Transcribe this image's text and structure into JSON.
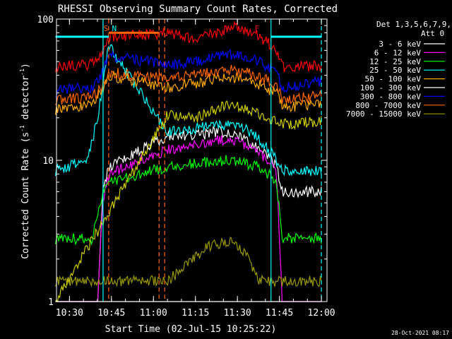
{
  "chart_data": {
    "type": "line",
    "title": "RHESSI Observing Summary Count Rates, Corrected",
    "xlabel": "Start Time (02-Jul-15 10:25:22)",
    "ylabel_main": "Corrected Count Rate (s",
    "ylabel_sup1": "-1",
    "ylabel_mid": " detector",
    "ylabel_sup2": "-1",
    "ylabel_end": ")",
    "y_scale": "log",
    "xlim": [
      "10:25:22",
      "12:02:00"
    ],
    "ylim": [
      1,
      100
    ],
    "x_ticks": [
      "10:30",
      "10:45",
      "11:00",
      "11:15",
      "11:30",
      "11:45",
      "12:00"
    ],
    "y_ticks": [
      "1",
      "10",
      "100"
    ],
    "legend_header_1": "Det 1,3,5,6,7,9,",
    "legend_header_2": "Att 0",
    "legend_position": "right",
    "series": [
      {
        "name": "3 - 6 keV",
        "color": "#ffffff",
        "points": [
          [
            "10:25",
            1.0
          ],
          [
            "10:40",
            1.0
          ],
          [
            "10:42",
            6
          ],
          [
            "10:44",
            9
          ],
          [
            "11:05",
            15
          ],
          [
            "11:15",
            15
          ],
          [
            "11:22",
            16
          ],
          [
            "11:28",
            16
          ],
          [
            "11:33",
            14
          ],
          [
            "11:38",
            12
          ],
          [
            "11:41",
            11
          ],
          [
            "11:44",
            9
          ],
          [
            "11:46",
            6
          ],
          [
            "12:00",
            6
          ]
        ]
      },
      {
        "name": "6 - 12 keV",
        "color": "#ff00ff",
        "points": [
          [
            "10:25",
            1.0
          ],
          [
            "10:40",
            1.0
          ],
          [
            "10:42",
            5
          ],
          [
            "10:44",
            8
          ],
          [
            "11:05",
            12
          ],
          [
            "11:15",
            13
          ],
          [
            "11:22",
            14
          ],
          [
            "11:28",
            14
          ],
          [
            "11:33",
            13
          ],
          [
            "11:38",
            11
          ],
          [
            "11:41",
            10
          ],
          [
            "11:44",
            8
          ],
          [
            "11:46",
            1.0
          ],
          [
            "12:00",
            1.0
          ]
        ]
      },
      {
        "name": "12 - 25 keV",
        "color": "#00ff00",
        "points": [
          [
            "10:25",
            2.8
          ],
          [
            "10:38",
            2.8
          ],
          [
            "10:41",
            5
          ],
          [
            "10:43",
            7
          ],
          [
            "11:05",
            9
          ],
          [
            "11:15",
            9.5
          ],
          [
            "11:22",
            10
          ],
          [
            "11:28",
            10
          ],
          [
            "11:33",
            9.5
          ],
          [
            "11:38",
            9
          ],
          [
            "11:41",
            8
          ],
          [
            "11:44",
            7
          ],
          [
            "11:46",
            2.8
          ],
          [
            "12:00",
            2.8
          ]
        ]
      },
      {
        "name": "25 - 50 keV",
        "color": "#00ffff",
        "points": [
          [
            "10:25",
            8.5
          ],
          [
            "10:36",
            10
          ],
          [
            "10:40",
            19
          ],
          [
            "10:44",
            65
          ],
          [
            "11:05",
            16
          ],
          [
            "11:15",
            17
          ],
          [
            "11:22",
            18
          ],
          [
            "11:28",
            18
          ],
          [
            "11:33",
            17
          ],
          [
            "11:38",
            14
          ],
          [
            "11:41",
            12
          ],
          [
            "11:44",
            10
          ],
          [
            "11:46",
            8.5
          ],
          [
            "12:00",
            8.5
          ]
        ]
      },
      {
        "name": "50 - 100 keV",
        "color": "#ffaa00",
        "points": [
          [
            "10:25",
            23
          ],
          [
            "10:38",
            25
          ],
          [
            "10:41",
            30
          ],
          [
            "10:44",
            40
          ],
          [
            "11:05",
            33
          ],
          [
            "11:15",
            35
          ],
          [
            "11:22",
            38
          ],
          [
            "11:28",
            39
          ],
          [
            "11:33",
            37
          ],
          [
            "11:38",
            34
          ],
          [
            "11:41",
            32
          ],
          [
            "11:44",
            30
          ],
          [
            "11:46",
            24
          ],
          [
            "12:00",
            25
          ]
        ]
      },
      {
        "name": "100 - 300 keV",
        "color": "#ffffff",
        "points": [
          [
            "10:25",
            1.0
          ],
          [
            "10:40",
            1.0
          ],
          [
            "10:44",
            1.0
          ],
          [
            "11:05",
            1.0
          ],
          [
            "12:00",
            1.0
          ]
        ]
      },
      {
        "name": "300 - 800 keV",
        "color": "#0000ff",
        "points": [
          [
            "10:25",
            31
          ],
          [
            "10:38",
            33
          ],
          [
            "10:41",
            38
          ],
          [
            "10:44",
            55
          ],
          [
            "11:05",
            48
          ],
          [
            "11:15",
            50
          ],
          [
            "11:22",
            54
          ],
          [
            "11:28",
            56
          ],
          [
            "11:33",
            54
          ],
          [
            "11:38",
            50
          ],
          [
            "11:41",
            46
          ],
          [
            "11:44",
            42
          ],
          [
            "11:46",
            33
          ],
          [
            "12:00",
            36
          ]
        ]
      },
      {
        "name": "800 - 7000 keV",
        "color": "#ff6600",
        "points": [
          [
            "10:25",
            27
          ],
          [
            "10:38",
            28
          ],
          [
            "10:41",
            32
          ],
          [
            "10:44",
            42
          ],
          [
            "11:05",
            38
          ],
          [
            "11:15",
            40
          ],
          [
            "11:22",
            43
          ],
          [
            "11:28",
            44
          ],
          [
            "11:33",
            42
          ],
          [
            "11:38",
            39
          ],
          [
            "11:41",
            37
          ],
          [
            "11:44",
            35
          ],
          [
            "11:46",
            27
          ],
          [
            "12:00",
            29
          ]
        ]
      },
      {
        "name": "7000 - 15000 keV",
        "color": "#999900",
        "points": [
          [
            "10:25",
            1.4
          ],
          [
            "10:40",
            1.4
          ],
          [
            "10:44",
            1.4
          ],
          [
            "11:05",
            1.4
          ],
          [
            "11:20",
            2.5
          ],
          [
            "11:28",
            2.7
          ],
          [
            "11:33",
            2.2
          ],
          [
            "11:38",
            1.4
          ],
          [
            "12:00",
            1.4
          ]
        ]
      },
      {
        "name": "",
        "color": "#ff0000",
        "points": [
          [
            "10:25",
            46
          ],
          [
            "10:38",
            48
          ],
          [
            "10:41",
            55
          ],
          [
            "10:44",
            75
          ],
          [
            "11:05",
            80
          ],
          [
            "11:15",
            72
          ],
          [
            "11:22",
            80
          ],
          [
            "11:28",
            88
          ],
          [
            "11:33",
            84
          ],
          [
            "11:38",
            75
          ],
          [
            "11:41",
            68
          ],
          [
            "11:44",
            58
          ],
          [
            "11:46",
            46
          ],
          [
            "12:00",
            47
          ]
        ]
      },
      {
        "name": "",
        "color": "#cccc00",
        "points": [
          [
            "10:25",
            1.0
          ],
          [
            "11:05",
            21
          ],
          [
            "11:15",
            20
          ],
          [
            "11:22",
            23
          ],
          [
            "11:28",
            25
          ],
          [
            "11:33",
            23
          ],
          [
            "11:38",
            21
          ],
          [
            "11:41",
            20
          ],
          [
            "11:44",
            19
          ],
          [
            "11:46",
            18
          ],
          [
            "12:00",
            19
          ]
        ]
      }
    ],
    "annotations": [
      {
        "text": "S",
        "time": "10:43",
        "color": "#ff6600"
      },
      {
        "text": "N",
        "time": "10:46",
        "color": "#00ffff"
      },
      {
        "text": "F",
        "time": "11:37",
        "color": "#ff0000"
      }
    ],
    "vertical_lines": [
      {
        "time": "10:42",
        "color": "#00ffff",
        "style": "solid"
      },
      {
        "time": "10:44",
        "color": "#ff6600",
        "style": "dashed"
      },
      {
        "time": "11:02",
        "color": "#ff6600",
        "style": "dashed"
      },
      {
        "time": "11:04",
        "color": "#ff6600",
        "style": "dashed"
      },
      {
        "time": "11:42",
        "color": "#00ffff",
        "style": "solid"
      },
      {
        "time": "12:00",
        "color": "#00ffff",
        "style": "dashed"
      }
    ],
    "horizontal_markers": [
      {
        "from": "10:25",
        "to": "10:44",
        "y": 75,
        "color": "#00ffff"
      },
      {
        "from": "10:44",
        "to": "11:02",
        "y": 80,
        "color": "#ff6600"
      },
      {
        "from": "11:42",
        "to": "12:00",
        "y": 75,
        "color": "#00ffff"
      }
    ],
    "timestamp": "28-Oct-2021 08:17"
  }
}
